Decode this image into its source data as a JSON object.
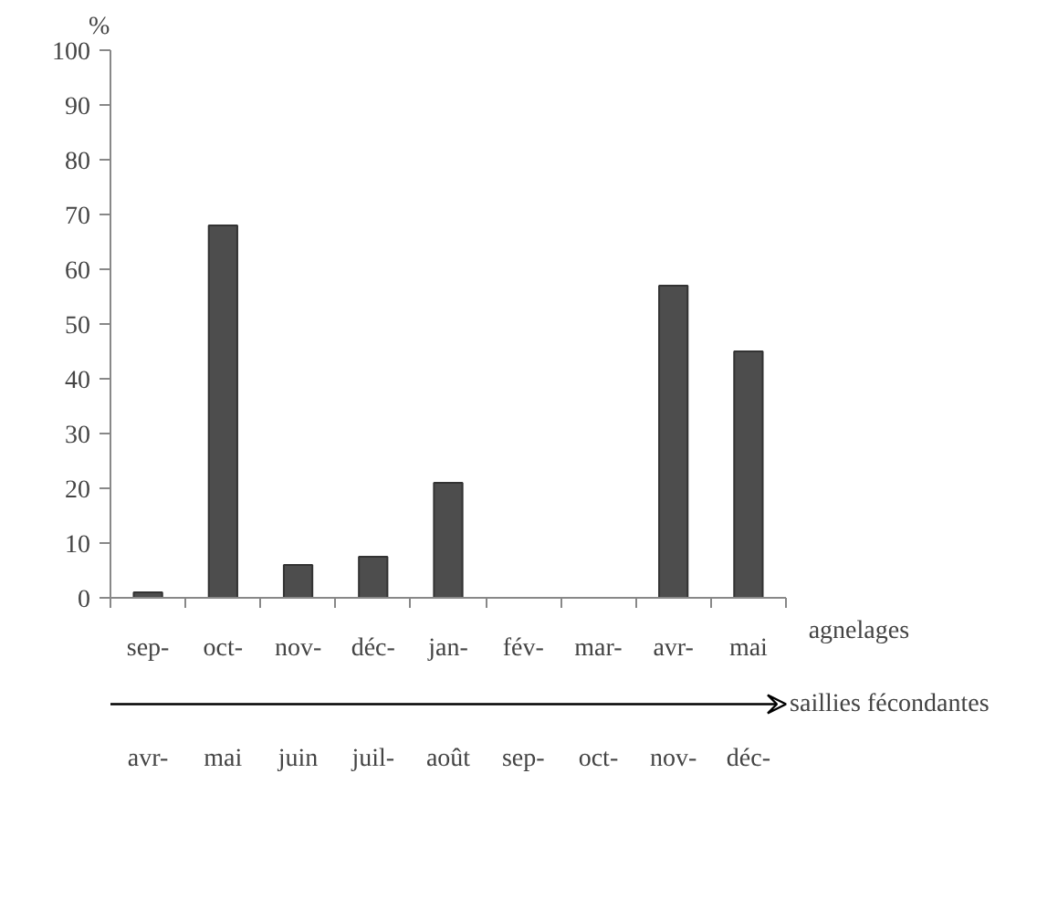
{
  "chart_data": {
    "type": "bar",
    "ylabel": "%",
    "xlabel": "agnelages",
    "categories": [
      "sep-",
      "oct-",
      "nov-",
      "déc-",
      "jan-",
      "fév-",
      "mar-",
      "avr-",
      "mai"
    ],
    "values": [
      1,
      68,
      6,
      7.5,
      21,
      null,
      null,
      57,
      45
    ],
    "color": "#4d4d4d",
    "ylim": [
      0,
      100
    ],
    "yticks": [
      0,
      10,
      20,
      30,
      40,
      50,
      60,
      70,
      80,
      90,
      100
    ],
    "grid": false,
    "annotations": [
      "saillies fécondantes",
      "avr-",
      "mai",
      "juin",
      "juil-",
      "août",
      "sep-",
      "oct-",
      "nov-",
      "déc-"
    ]
  }
}
